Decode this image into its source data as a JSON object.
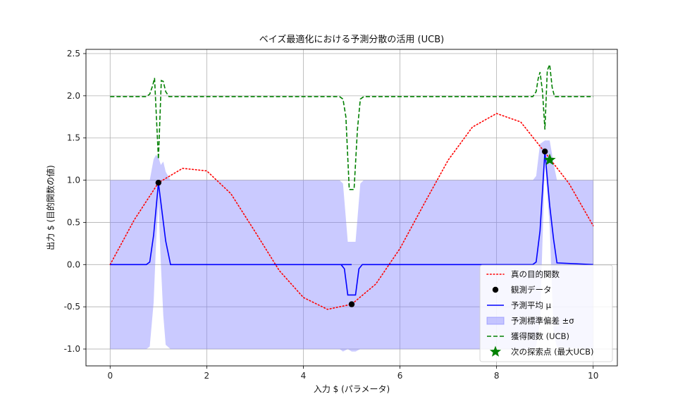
{
  "chart_data": {
    "type": "line",
    "title": "ベイズ最適化における予測分散の活用 (UCB)",
    "xlabel": "入力 $ (パラメータ)",
    "ylabel": "出力 $ (目的関数の値)",
    "xlim": [
      -0.5,
      10.5
    ],
    "ylim": [
      -1.2,
      2.55
    ],
    "xticks": [
      0,
      2,
      4,
      6,
      8,
      10
    ],
    "xtick_labels": [
      "0",
      "2",
      "4",
      "6",
      "8",
      "10"
    ],
    "yticks": [
      -1.0,
      -0.5,
      0.0,
      0.5,
      1.0,
      1.5,
      2.0,
      2.5
    ],
    "ytick_labels": [
      "-1.0",
      "-0.5",
      "0.0",
      "0.5",
      "1.0",
      "1.5",
      "2.0",
      "2.5"
    ],
    "grid": true,
    "legend_position": "lower-right",
    "colors": {
      "true_function": "#ff0000",
      "observed": "#000000",
      "mean": "#0000ff",
      "band": "#8080ff",
      "acquisition": "#008000",
      "next_point": "#008000"
    },
    "series": [
      {
        "name": "真の目的関数",
        "style": "dotted",
        "x": [
          0,
          0.5,
          1,
          1.5,
          2,
          2.5,
          3,
          3.5,
          4,
          4.5,
          5,
          5.5,
          6,
          6.5,
          7,
          7.5,
          8,
          8.5,
          9,
          9.5,
          10
        ],
        "y": [
          0,
          0.53,
          0.97,
          1.14,
          1.11,
          0.84,
          0.39,
          -0.07,
          -0.39,
          -0.53,
          -0.47,
          -0.23,
          0.19,
          0.72,
          1.24,
          1.63,
          1.79,
          1.69,
          1.33,
          0.96,
          0.46
        ]
      },
      {
        "name": "観測データ",
        "style": "markers",
        "x": [
          1.0,
          5.0,
          9.0
        ],
        "y": [
          0.97,
          -0.47,
          1.34
        ]
      },
      {
        "name": "予測平均 μ",
        "style": "solid",
        "x": [
          0,
          0.75,
          0.82,
          0.9,
          1.0,
          1.08,
          1.15,
          1.25,
          5,
          4.78,
          4.85,
          4.92,
          5.0,
          5.08,
          5.15,
          5.22,
          8.75,
          8.82,
          8.9,
          9.0,
          9.1,
          9.18,
          9.25,
          10
        ],
        "y": [
          0,
          0,
          0.03,
          0.35,
          0.97,
          0.6,
          0.28,
          0.0,
          0,
          0,
          -0.05,
          -0.36,
          -0.36,
          -0.36,
          -0.05,
          0,
          0,
          0.03,
          0.4,
          1.34,
          0.7,
          0.3,
          0.02,
          0
        ]
      },
      {
        "name": "予測標準偏差 ±σ",
        "style": "band",
        "x": [
          0,
          0.75,
          0.82,
          0.9,
          0.95,
          1.0,
          1.05,
          1.1,
          1.15,
          1.25,
          4.75,
          4.82,
          4.92,
          5.0,
          5.08,
          5.18,
          5.25,
          8.75,
          8.82,
          8.9,
          9.0,
          9.1,
          9.18,
          9.25,
          10
        ],
        "upper": [
          1,
          1,
          1.0,
          1.25,
          1.3,
          1.27,
          1.18,
          1.22,
          1.1,
          1,
          1,
          0.96,
          0.27,
          0.27,
          0.27,
          0.96,
          1,
          1,
          1.05,
          1.43,
          1.47,
          1.47,
          1.2,
          1,
          1
        ],
        "lower": [
          -1,
          -1,
          -0.97,
          -0.45,
          0.25,
          0.73,
          0.02,
          -0.6,
          -0.95,
          -1,
          -1,
          -1.03,
          -1.0,
          -1.03,
          -1.03,
          -1.0,
          -1.0,
          -1,
          -0.97,
          -0.68,
          1.22,
          0.45,
          -0.8,
          -0.98,
          -1
        ]
      },
      {
        "name": "獲得関数 (UCB)",
        "style": "dashed",
        "x": [
          0,
          0.75,
          0.82,
          0.88,
          0.92,
          1.0,
          1.06,
          1.1,
          1.15,
          1.22,
          4.75,
          4.82,
          4.88,
          4.95,
          5.05,
          5.12,
          5.18,
          5.25,
          8.75,
          8.82,
          8.86,
          8.9,
          8.95,
          9.0,
          9.05,
          9.1,
          9.15,
          9.2,
          10
        ],
        "y": [
          1.99,
          1.99,
          2.02,
          2.12,
          2.21,
          1.25,
          2.18,
          2.17,
          2.05,
          1.99,
          1.99,
          1.96,
          1.75,
          0.89,
          0.89,
          1.6,
          1.96,
          1.99,
          1.99,
          2.05,
          2.2,
          2.28,
          2.05,
          1.6,
          2.3,
          2.37,
          2.1,
          1.99,
          1.99
        ]
      },
      {
        "name": "次の探索点 (最大UCB)",
        "style": "star",
        "x": [
          9.1
        ],
        "y": [
          1.24
        ]
      }
    ]
  }
}
